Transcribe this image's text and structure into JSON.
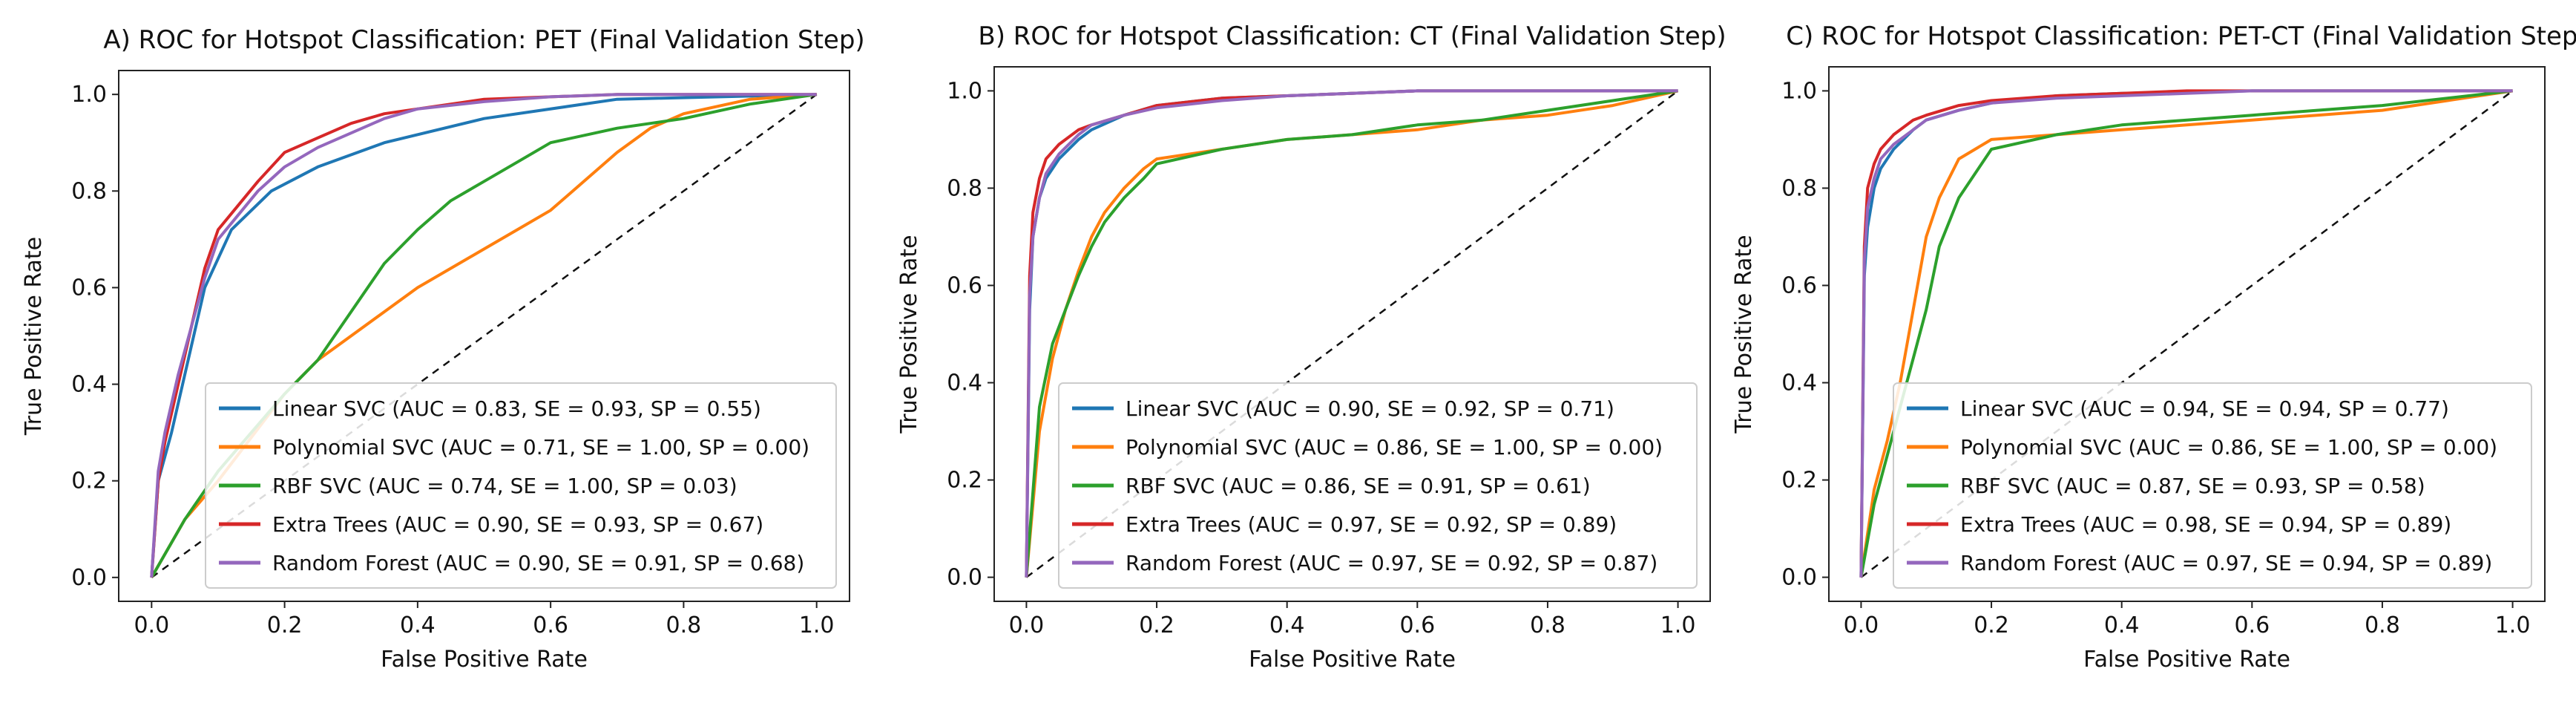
{
  "figure": {
    "legend_location": "lower-right",
    "reference_line": "diagonal dashed chance line"
  },
  "series_colors": {
    "linear_svc": "#1f77b4",
    "polynomial_svc": "#ff7f0e",
    "rbf_svc": "#2ca02c",
    "extra_trees": "#d62728",
    "random_forest": "#9467bd"
  },
  "chart_data": [
    {
      "type": "line",
      "title": "A) ROC for Hotspot Classification: PET (Final Validation Step)",
      "xlabel": "False Positive Rate",
      "ylabel": "True Positive Rate",
      "xlim": [
        0,
        1
      ],
      "ylim": [
        0,
        1
      ],
      "xticks": [
        "0.0",
        "0.2",
        "0.4",
        "0.6",
        "0.8",
        "1.0"
      ],
      "yticks": [
        "0.0",
        "0.2",
        "0.4",
        "0.6",
        "0.8",
        "1.0"
      ],
      "series": [
        {
          "key": "linear_svc",
          "legend": "Linear SVC (AUC = 0.83, SE = 0.93, SP = 0.55)",
          "x": [
            0,
            0.01,
            0.03,
            0.05,
            0.08,
            0.12,
            0.18,
            0.25,
            0.35,
            0.5,
            0.7,
            1.0
          ],
          "y": [
            0,
            0.2,
            0.3,
            0.42,
            0.6,
            0.72,
            0.8,
            0.85,
            0.9,
            0.95,
            0.99,
            1.0
          ]
        },
        {
          "key": "polynomial_svc",
          "legend": "Polynomial SVC (AUC = 0.71, SE = 1.00, SP = 0.00)",
          "x": [
            0,
            0.05,
            0.1,
            0.15,
            0.2,
            0.25,
            0.3,
            0.35,
            0.4,
            0.45,
            0.5,
            0.55,
            0.6,
            0.65,
            0.7,
            0.75,
            0.8,
            0.9,
            1.0
          ],
          "y": [
            0,
            0.12,
            0.2,
            0.29,
            0.38,
            0.45,
            0.5,
            0.55,
            0.6,
            0.64,
            0.68,
            0.72,
            0.76,
            0.82,
            0.88,
            0.93,
            0.96,
            0.99,
            1.0
          ]
        },
        {
          "key": "rbf_svc",
          "legend": "RBF SVC (AUC = 0.74, SE = 1.00, SP = 0.03)",
          "x": [
            0,
            0.05,
            0.1,
            0.15,
            0.2,
            0.25,
            0.3,
            0.35,
            0.4,
            0.45,
            0.5,
            0.55,
            0.6,
            0.7,
            0.8,
            0.9,
            1.0
          ],
          "y": [
            0,
            0.12,
            0.22,
            0.3,
            0.38,
            0.45,
            0.55,
            0.65,
            0.72,
            0.78,
            0.82,
            0.86,
            0.9,
            0.93,
            0.95,
            0.98,
            1.0
          ]
        },
        {
          "key": "extra_trees",
          "legend": "Extra Trees (AUC = 0.90, SE = 0.93, SP = 0.67)",
          "x": [
            0,
            0.01,
            0.02,
            0.04,
            0.06,
            0.08,
            0.1,
            0.13,
            0.16,
            0.2,
            0.25,
            0.3,
            0.35,
            0.4,
            0.5,
            0.6,
            0.7,
            0.8,
            1.0
          ],
          "y": [
            0,
            0.2,
            0.28,
            0.4,
            0.52,
            0.64,
            0.72,
            0.77,
            0.82,
            0.88,
            0.91,
            0.94,
            0.96,
            0.97,
            0.99,
            0.995,
            1.0,
            1.0,
            1.0
          ]
        },
        {
          "key": "random_forest",
          "legend": "Random Forest (AUC = 0.90, SE = 0.91, SP = 0.68)",
          "x": [
            0,
            0.01,
            0.02,
            0.04,
            0.06,
            0.08,
            0.1,
            0.13,
            0.16,
            0.2,
            0.25,
            0.3,
            0.35,
            0.4,
            0.5,
            0.6,
            0.7,
            0.8,
            1.0
          ],
          "y": [
            0,
            0.22,
            0.3,
            0.42,
            0.52,
            0.62,
            0.7,
            0.75,
            0.8,
            0.85,
            0.89,
            0.92,
            0.95,
            0.97,
            0.985,
            0.995,
            1.0,
            1.0,
            1.0
          ]
        }
      ]
    },
    {
      "type": "line",
      "title": "B) ROC for Hotspot Classification: CT (Final Validation Step)",
      "xlabel": "False Positive Rate",
      "ylabel": "True Positive Rate",
      "xlim": [
        0,
        1
      ],
      "ylim": [
        0,
        1
      ],
      "xticks": [
        "0.0",
        "0.2",
        "0.4",
        "0.6",
        "0.8",
        "1.0"
      ],
      "yticks": [
        "0.0",
        "0.2",
        "0.4",
        "0.6",
        "0.8",
        "1.0"
      ],
      "series": [
        {
          "key": "linear_svc",
          "legend": "Linear SVC (AUC = 0.90, SE = 0.92, SP = 0.71)",
          "x": [
            0,
            0.005,
            0.01,
            0.02,
            0.03,
            0.05,
            0.08,
            0.1,
            0.15,
            0.2,
            0.3,
            0.4,
            0.6,
            1.0
          ],
          "y": [
            0,
            0.55,
            0.7,
            0.78,
            0.82,
            0.86,
            0.9,
            0.92,
            0.95,
            0.97,
            0.985,
            0.99,
            1.0,
            1.0
          ]
        },
        {
          "key": "polynomial_svc",
          "legend": "Polynomial SVC (AUC = 0.86, SE = 1.00, SP = 0.00)",
          "x": [
            0,
            0.02,
            0.04,
            0.06,
            0.08,
            0.1,
            0.12,
            0.15,
            0.18,
            0.2,
            0.3,
            0.4,
            0.5,
            0.6,
            0.7,
            0.8,
            0.9,
            1.0
          ],
          "y": [
            0,
            0.3,
            0.45,
            0.55,
            0.63,
            0.7,
            0.75,
            0.8,
            0.84,
            0.86,
            0.88,
            0.9,
            0.91,
            0.92,
            0.94,
            0.95,
            0.97,
            1.0
          ]
        },
        {
          "key": "rbf_svc",
          "legend": "RBF SVC (AUC = 0.86, SE = 0.91, SP = 0.61)",
          "x": [
            0,
            0.02,
            0.04,
            0.06,
            0.08,
            0.1,
            0.12,
            0.15,
            0.18,
            0.2,
            0.3,
            0.4,
            0.5,
            0.6,
            0.7,
            0.8,
            0.9,
            1.0
          ],
          "y": [
            0,
            0.35,
            0.48,
            0.55,
            0.62,
            0.68,
            0.73,
            0.78,
            0.82,
            0.85,
            0.88,
            0.9,
            0.91,
            0.93,
            0.94,
            0.96,
            0.98,
            1.0
          ]
        },
        {
          "key": "extra_trees",
          "legend": "Extra Trees (AUC = 0.97, SE = 0.92, SP = 0.89)",
          "x": [
            0,
            0.005,
            0.01,
            0.02,
            0.03,
            0.05,
            0.08,
            0.1,
            0.15,
            0.2,
            0.3,
            0.4,
            0.5,
            0.6,
            0.8,
            1.0
          ],
          "y": [
            0,
            0.62,
            0.75,
            0.82,
            0.86,
            0.89,
            0.92,
            0.93,
            0.95,
            0.97,
            0.985,
            0.99,
            0.995,
            1.0,
            1.0,
            1.0
          ]
        },
        {
          "key": "random_forest",
          "legend": "Random Forest (AUC = 0.97, SE = 0.92, SP = 0.87)",
          "x": [
            0,
            0.005,
            0.01,
            0.02,
            0.03,
            0.05,
            0.08,
            0.1,
            0.15,
            0.2,
            0.3,
            0.4,
            0.5,
            0.6,
            0.8,
            1.0
          ],
          "y": [
            0,
            0.58,
            0.7,
            0.78,
            0.83,
            0.87,
            0.91,
            0.93,
            0.95,
            0.965,
            0.98,
            0.99,
            0.995,
            1.0,
            1.0,
            1.0
          ]
        }
      ]
    },
    {
      "type": "line",
      "title": "C) ROC for Hotspot Classification: PET-CT (Final Validation Step)",
      "xlabel": "False Positive Rate",
      "ylabel": "True Positive Rate",
      "xlim": [
        0,
        1
      ],
      "ylim": [
        0,
        1
      ],
      "xticks": [
        "0.0",
        "0.2",
        "0.4",
        "0.6",
        "0.8",
        "1.0"
      ],
      "yticks": [
        "0.0",
        "0.2",
        "0.4",
        "0.6",
        "0.8",
        "1.0"
      ],
      "series": [
        {
          "key": "linear_svc",
          "legend": "Linear SVC (AUC = 0.94, SE = 0.94, SP = 0.77)",
          "x": [
            0,
            0.005,
            0.01,
            0.02,
            0.03,
            0.05,
            0.08,
            0.1,
            0.15,
            0.2,
            0.3,
            0.4,
            0.6,
            1.0
          ],
          "y": [
            0,
            0.62,
            0.72,
            0.8,
            0.84,
            0.88,
            0.92,
            0.94,
            0.96,
            0.975,
            0.99,
            0.995,
            1.0,
            1.0
          ]
        },
        {
          "key": "polynomial_svc",
          "legend": "Polynomial SVC (AUC = 0.86, SE = 1.00, SP = 0.00)",
          "x": [
            0,
            0.02,
            0.04,
            0.06,
            0.08,
            0.1,
            0.12,
            0.15,
            0.2,
            0.3,
            0.4,
            0.5,
            0.6,
            0.7,
            0.8,
            0.9,
            1.0
          ],
          "y": [
            0,
            0.18,
            0.28,
            0.4,
            0.55,
            0.7,
            0.78,
            0.86,
            0.9,
            0.91,
            0.92,
            0.93,
            0.94,
            0.95,
            0.96,
            0.98,
            1.0
          ]
        },
        {
          "key": "rbf_svc",
          "legend": "RBF SVC (AUC = 0.87, SE = 0.93, SP = 0.58)",
          "x": [
            0,
            0.02,
            0.04,
            0.06,
            0.08,
            0.1,
            0.12,
            0.15,
            0.2,
            0.3,
            0.4,
            0.5,
            0.6,
            0.7,
            0.8,
            0.9,
            1.0
          ],
          "y": [
            0,
            0.15,
            0.25,
            0.35,
            0.45,
            0.55,
            0.68,
            0.78,
            0.88,
            0.91,
            0.93,
            0.94,
            0.95,
            0.96,
            0.97,
            0.985,
            1.0
          ]
        },
        {
          "key": "extra_trees",
          "legend": "Extra Trees (AUC = 0.98, SE = 0.94, SP = 0.89)",
          "x": [
            0,
            0.005,
            0.01,
            0.02,
            0.03,
            0.05,
            0.08,
            0.1,
            0.15,
            0.2,
            0.3,
            0.4,
            0.5,
            0.6,
            0.8,
            1.0
          ],
          "y": [
            0,
            0.68,
            0.8,
            0.85,
            0.88,
            0.91,
            0.94,
            0.95,
            0.97,
            0.98,
            0.99,
            0.995,
            1.0,
            1.0,
            1.0,
            1.0
          ]
        },
        {
          "key": "random_forest",
          "legend": "Random Forest (AUC = 0.97, SE = 0.94, SP = 0.89)",
          "x": [
            0,
            0.005,
            0.01,
            0.02,
            0.03,
            0.05,
            0.08,
            0.1,
            0.15,
            0.2,
            0.3,
            0.4,
            0.5,
            0.6,
            0.8,
            1.0
          ],
          "y": [
            0,
            0.65,
            0.76,
            0.82,
            0.86,
            0.89,
            0.92,
            0.94,
            0.96,
            0.975,
            0.985,
            0.99,
            0.995,
            1.0,
            1.0,
            1.0
          ]
        }
      ]
    }
  ]
}
